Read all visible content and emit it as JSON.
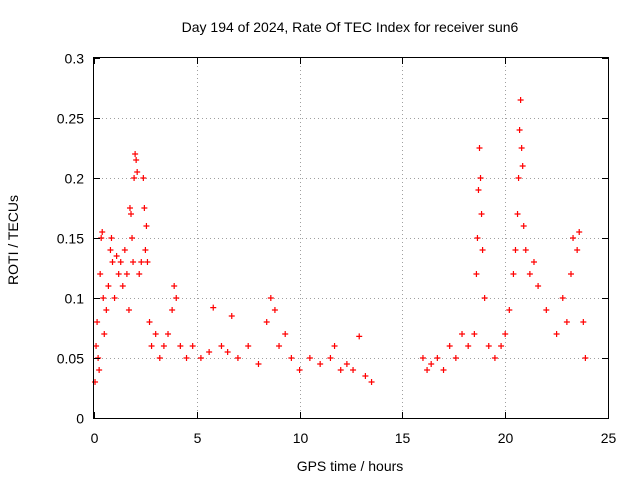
{
  "chart_data": {
    "type": "scatter",
    "title": "Day 194 of 2024, Rate Of TEC Index for receiver sun6",
    "xlabel": "GPS time / hours",
    "ylabel": "ROTI / TECUs",
    "xlim": [
      0,
      25
    ],
    "ylim": [
      0,
      0.3
    ],
    "xticks": [
      0,
      5,
      10,
      15,
      20,
      25
    ],
    "yticks": [
      0,
      0.05,
      0.1,
      0.15,
      0.2,
      0.25,
      0.3
    ],
    "xtick_labels": [
      "0",
      "5",
      "10",
      "15",
      "20",
      "25"
    ],
    "ytick_labels": [
      "0",
      "0.05",
      "0.1",
      "0.15",
      "0.2",
      "0.25",
      "0.3"
    ],
    "grid": true,
    "marker": "+",
    "color": "#ff0000",
    "data_gap_hours": [
      13.7,
      15.9
    ],
    "series": [
      {
        "points": [
          [
            0.05,
            0.03
          ],
          [
            0.1,
            0.06
          ],
          [
            0.15,
            0.08
          ],
          [
            0.2,
            0.05
          ],
          [
            0.25,
            0.04
          ],
          [
            0.3,
            0.12
          ],
          [
            0.35,
            0.15
          ],
          [
            0.4,
            0.155
          ],
          [
            0.45,
            0.1
          ],
          [
            0.5,
            0.07
          ],
          [
            0.6,
            0.09
          ],
          [
            0.7,
            0.11
          ],
          [
            0.8,
            0.14
          ],
          [
            0.85,
            0.15
          ],
          [
            0.9,
            0.13
          ],
          [
            1.0,
            0.1
          ],
          [
            1.1,
            0.135
          ],
          [
            1.2,
            0.12
          ],
          [
            1.3,
            0.13
          ],
          [
            1.4,
            0.11
          ],
          [
            1.5,
            0.14
          ],
          [
            1.6,
            0.12
          ],
          [
            1.7,
            0.09
          ],
          [
            1.75,
            0.175
          ],
          [
            1.8,
            0.17
          ],
          [
            1.85,
            0.15
          ],
          [
            1.9,
            0.13
          ],
          [
            1.95,
            0.2
          ],
          [
            2.0,
            0.22
          ],
          [
            2.05,
            0.215
          ],
          [
            2.1,
            0.205
          ],
          [
            2.2,
            0.12
          ],
          [
            2.3,
            0.13
          ],
          [
            2.4,
            0.2
          ],
          [
            2.45,
            0.175
          ],
          [
            2.5,
            0.14
          ],
          [
            2.55,
            0.16
          ],
          [
            2.6,
            0.13
          ],
          [
            2.7,
            0.08
          ],
          [
            2.8,
            0.06
          ],
          [
            3.0,
            0.07
          ],
          [
            3.2,
            0.05
          ],
          [
            3.4,
            0.06
          ],
          [
            3.6,
            0.07
          ],
          [
            3.8,
            0.09
          ],
          [
            3.9,
            0.11
          ],
          [
            4.0,
            0.1
          ],
          [
            4.2,
            0.06
          ],
          [
            4.5,
            0.05
          ],
          [
            4.8,
            0.06
          ],
          [
            5.2,
            0.05
          ],
          [
            5.6,
            0.055
          ],
          [
            5.8,
            0.092
          ],
          [
            6.2,
            0.06
          ],
          [
            6.5,
            0.055
          ],
          [
            6.7,
            0.085
          ],
          [
            7.0,
            0.05
          ],
          [
            7.5,
            0.06
          ],
          [
            8.0,
            0.045
          ],
          [
            8.4,
            0.08
          ],
          [
            8.6,
            0.1
          ],
          [
            8.8,
            0.09
          ],
          [
            9.0,
            0.06
          ],
          [
            9.3,
            0.07
          ],
          [
            9.6,
            0.05
          ],
          [
            10.0,
            0.04
          ],
          [
            10.5,
            0.05
          ],
          [
            11.0,
            0.045
          ],
          [
            11.5,
            0.05
          ],
          [
            11.7,
            0.06
          ],
          [
            12.0,
            0.04
          ],
          [
            12.3,
            0.045
          ],
          [
            12.6,
            0.04
          ],
          [
            12.9,
            0.068
          ],
          [
            13.2,
            0.035
          ],
          [
            13.5,
            0.03
          ],
          [
            16.0,
            0.05
          ],
          [
            16.2,
            0.04
          ],
          [
            16.4,
            0.045
          ],
          [
            16.7,
            0.05
          ],
          [
            17.0,
            0.04
          ],
          [
            17.3,
            0.06
          ],
          [
            17.6,
            0.05
          ],
          [
            17.9,
            0.07
          ],
          [
            18.2,
            0.06
          ],
          [
            18.5,
            0.07
          ],
          [
            18.6,
            0.12
          ],
          [
            18.65,
            0.15
          ],
          [
            18.7,
            0.19
          ],
          [
            18.75,
            0.225
          ],
          [
            18.8,
            0.2
          ],
          [
            18.85,
            0.17
          ],
          [
            18.9,
            0.14
          ],
          [
            19.0,
            0.1
          ],
          [
            19.2,
            0.06
          ],
          [
            19.5,
            0.05
          ],
          [
            19.8,
            0.06
          ],
          [
            20.0,
            0.07
          ],
          [
            20.2,
            0.09
          ],
          [
            20.4,
            0.12
          ],
          [
            20.5,
            0.14
          ],
          [
            20.6,
            0.17
          ],
          [
            20.65,
            0.2
          ],
          [
            20.7,
            0.24
          ],
          [
            20.75,
            0.265
          ],
          [
            20.8,
            0.225
          ],
          [
            20.85,
            0.21
          ],
          [
            20.9,
            0.16
          ],
          [
            21.0,
            0.14
          ],
          [
            21.2,
            0.12
          ],
          [
            21.4,
            0.13
          ],
          [
            21.6,
            0.11
          ],
          [
            22.0,
            0.09
          ],
          [
            22.5,
            0.07
          ],
          [
            22.8,
            0.1
          ],
          [
            23.0,
            0.08
          ],
          [
            23.2,
            0.12
          ],
          [
            23.3,
            0.15
          ],
          [
            23.5,
            0.14
          ],
          [
            23.6,
            0.155
          ],
          [
            23.8,
            0.08
          ],
          [
            23.9,
            0.05
          ]
        ]
      }
    ]
  }
}
